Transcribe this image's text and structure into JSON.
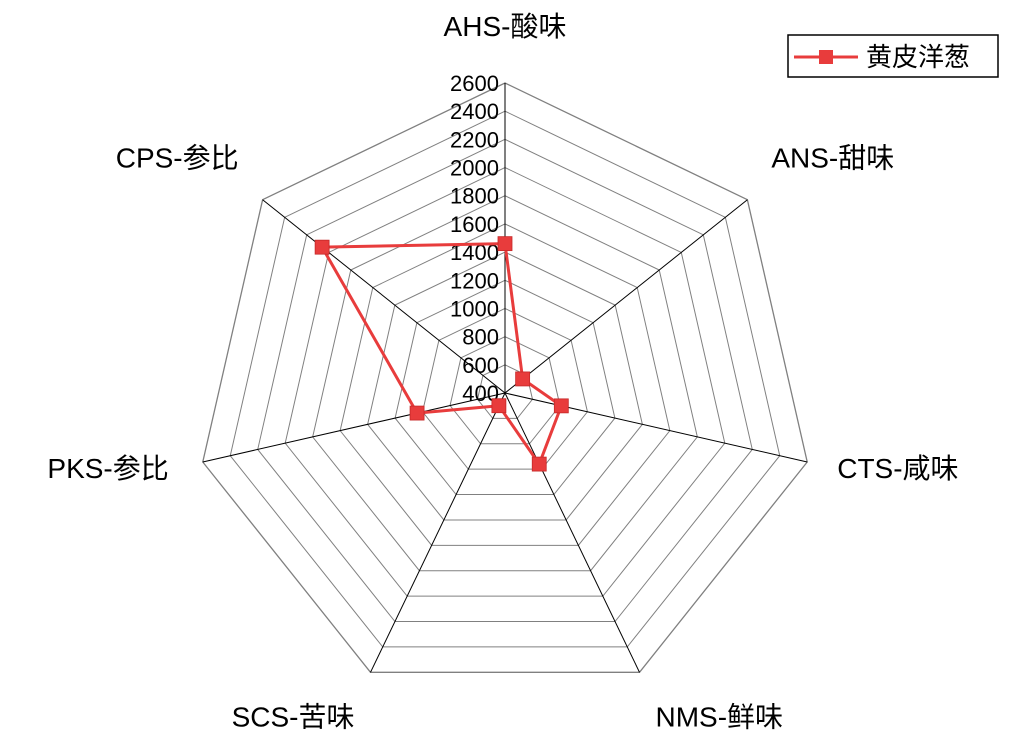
{
  "chart_data": {
    "type": "radar",
    "categories": [
      "AHS-酸味",
      "ANS-甜味",
      "CTS-咸味",
      "NMS-鲜味",
      "SCS-苦味",
      "PKS-参比",
      "CPS-参比"
    ],
    "series": [
      {
        "name": "黄皮洋葱",
        "values": [
          1460,
          560,
          810,
          960,
          500,
          1040,
          2060
        ],
        "color": "#e83c3c",
        "marker": "square"
      }
    ],
    "axis": {
      "min": 400,
      "max": 2600,
      "step": 200,
      "ticks": [
        "400",
        "600",
        "800",
        "1000",
        "1200",
        "1400",
        "1600",
        "1800",
        "2000",
        "2200",
        "2400",
        "2600"
      ]
    },
    "grid": true,
    "grid_color": "#808080",
    "legend_position": "top-right"
  }
}
